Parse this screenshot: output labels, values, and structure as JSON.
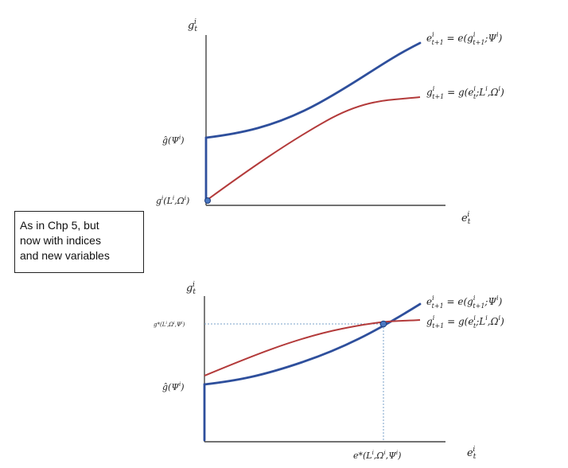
{
  "note": {
    "lines": [
      "As in Chp 5, but",
      "now with indices",
      "and new variables"
    ]
  },
  "top_panel": {
    "y_axis_label": "g_t^i",
    "x_axis_label": "e_t^i",
    "curve_blue_label": "e_{t+1}^i = e(g_{t+1}^i; Ψ^i)",
    "curve_red_label": "g_{t+1}^i = g(e_t^i; L^i, Ω^i)",
    "tick_ghat": "ĝ(Ψ^i)",
    "tick_gL": "g^i(L^i, Ω^i)"
  },
  "bottom_panel": {
    "y_axis_label": "g_t^i",
    "x_axis_label": "e_t^i",
    "curve_blue_label": "e_{t+1}^i = e(g_{t+1}^i; Ψ^i)",
    "curve_red_label": "g_{t+1}^i = g(e_t^i; L^i, Ω^i)",
    "tick_ghat": "ĝ(Ψ^i)",
    "tick_gstar": "g*(L^i, Ω^i, Ψ^i)",
    "tick_estar": "e*(L^i, Ω^i, Ψ^i)"
  },
  "colors": {
    "blue_curve": "#2e4f9c",
    "red_curve": "#b33a3a",
    "axis": "#444444",
    "dotted_guide": "#7aa0c8"
  }
}
